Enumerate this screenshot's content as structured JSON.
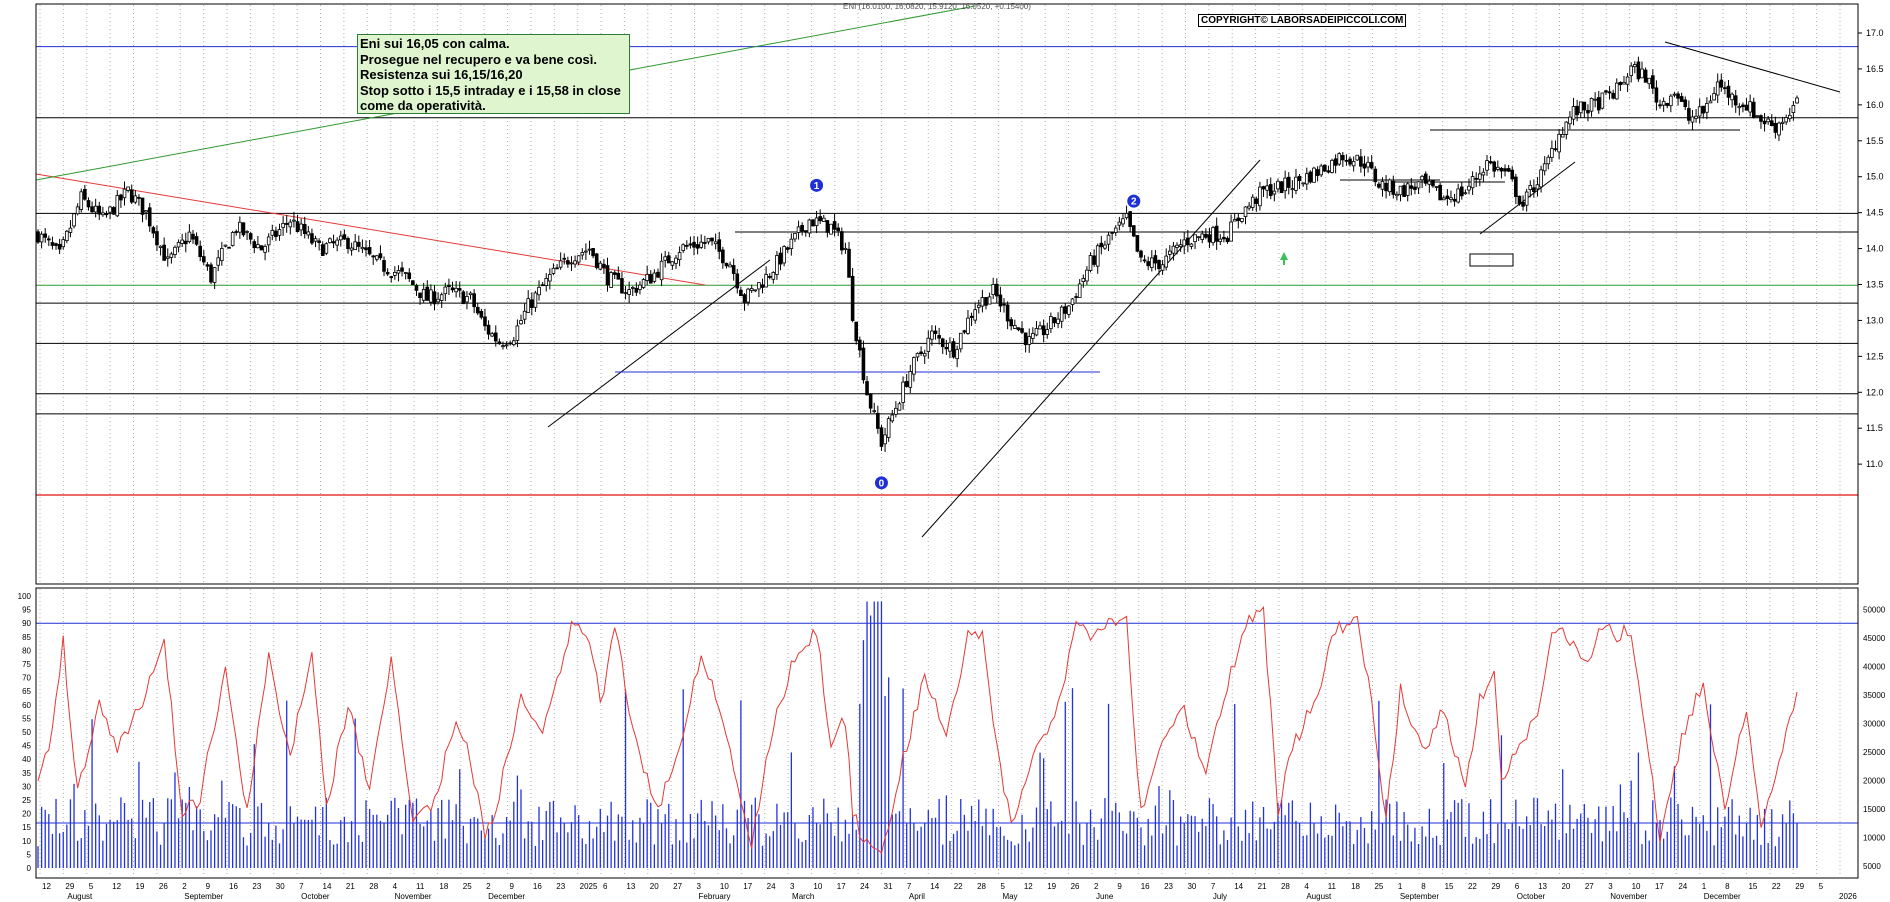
{
  "header_text": "ENI (16.0100, 16.0820, 15.9120, 16.0520, +0.15400)",
  "copyright": "COPYRIGHT© LABORSADEIPICCOLI.COM",
  "annotation_lines": [
    "Eni sui 16,05 con calma.",
    "Prosegue nel recupero e va bene così.",
    "Resistenza sui 16,15/16,20",
    "Stop sotto i 15,5 intraday e i 15,58 in close",
    "come da operatività."
  ],
  "wave_labels": [
    "0",
    "1",
    "2"
  ],
  "colors": {
    "candle": "#000000",
    "trendline_red": "#e53935",
    "trendline_green": "#2e9a2e",
    "level_blue": "#1f2fd6",
    "oscillator": "#e53935",
    "volume": "#2233dd",
    "grid": "#b0b0b0",
    "annotation_bg": "#dff5cf",
    "wave_marker": "#1f2fd6"
  },
  "chart_data": [
    {
      "type": "candlestick",
      "title": "",
      "ylim": [
        10.5,
        17.1
      ],
      "y_ticks": [
        "11.0",
        "11.5",
        "12.0",
        "12.5",
        "13.0",
        "13.5",
        "14.0",
        "14.5",
        "15.0",
        "15.5",
        "16.0",
        "16.5",
        "17.0"
      ],
      "horizontal_levels": [
        {
          "value": 16.81,
          "color": "blue"
        },
        {
          "value": 15.82,
          "color": "black"
        },
        {
          "value": 14.49,
          "color": "black"
        },
        {
          "value": 13.49,
          "color": "green"
        },
        {
          "value": 13.24,
          "color": "black"
        },
        {
          "value": 12.68,
          "color": "black"
        },
        {
          "value": 11.98,
          "color": "black"
        },
        {
          "value": 11.7,
          "color": "black"
        },
        {
          "value": 10.57,
          "color": "red"
        }
      ],
      "price_anchors": [
        [
          0,
          14.2
        ],
        [
          6,
          13.9
        ],
        [
          12,
          14.7
        ],
        [
          18,
          14.4
        ],
        [
          25,
          14.8
        ],
        [
          30,
          14.5
        ],
        [
          36,
          13.8
        ],
        [
          42,
          14.2
        ],
        [
          48,
          13.6
        ],
        [
          55,
          14.3
        ],
        [
          62,
          14.0
        ],
        [
          70,
          14.4
        ],
        [
          78,
          14.0
        ],
        [
          86,
          14.1
        ],
        [
          94,
          13.8
        ],
        [
          102,
          13.6
        ],
        [
          108,
          13.3
        ],
        [
          114,
          13.4
        ],
        [
          120,
          13.3
        ],
        [
          124,
          12.9
        ],
        [
          128,
          12.7
        ],
        [
          132,
          12.8
        ],
        [
          136,
          13.2
        ],
        [
          142,
          13.6
        ],
        [
          148,
          13.9
        ],
        [
          153,
          14.0
        ],
        [
          158,
          13.6
        ],
        [
          164,
          13.4
        ],
        [
          170,
          13.6
        ],
        [
          178,
          14.0
        ],
        [
          186,
          14.1
        ],
        [
          192,
          13.8
        ],
        [
          196,
          13.3
        ],
        [
          202,
          13.6
        ],
        [
          208,
          14.0
        ],
        [
          214,
          14.4
        ],
        [
          220,
          14.3
        ],
        [
          224,
          14.0
        ],
        [
          226,
          13.1
        ],
        [
          230,
          12.0
        ],
        [
          234,
          11.3
        ],
        [
          238,
          11.8
        ],
        [
          242,
          12.3
        ],
        [
          248,
          12.8
        ],
        [
          254,
          12.6
        ],
        [
          260,
          13.2
        ],
        [
          265,
          13.4
        ],
        [
          270,
          13.0
        ],
        [
          275,
          12.7
        ],
        [
          280,
          12.9
        ],
        [
          286,
          13.2
        ],
        [
          292,
          13.8
        ],
        [
          298,
          14.2
        ],
        [
          302,
          14.4
        ],
        [
          306,
          13.8
        ],
        [
          312,
          13.8
        ],
        [
          318,
          14.1
        ],
        [
          324,
          14.2
        ],
        [
          330,
          14.2
        ],
        [
          334,
          14.5
        ],
        [
          340,
          14.8
        ],
        [
          348,
          14.9
        ],
        [
          356,
          15.1
        ],
        [
          362,
          15.3
        ],
        [
          368,
          15.2
        ],
        [
          372,
          14.9
        ],
        [
          378,
          14.8
        ],
        [
          384,
          14.9
        ],
        [
          390,
          14.7
        ],
        [
          396,
          14.8
        ],
        [
          402,
          15.2
        ],
        [
          408,
          15.0
        ],
        [
          412,
          14.6
        ],
        [
          414,
          14.8
        ],
        [
          418,
          15.1
        ],
        [
          422,
          15.6
        ],
        [
          426,
          15.9
        ],
        [
          432,
          16.0
        ],
        [
          438,
          16.2
        ],
        [
          442,
          16.5
        ],
        [
          446,
          16.4
        ],
        [
          450,
          16.0
        ],
        [
          454,
          16.2
        ],
        [
          458,
          15.8
        ],
        [
          462,
          15.9
        ],
        [
          466,
          16.3
        ],
        [
          470,
          16.1
        ],
        [
          474,
          16.0
        ],
        [
          478,
          15.8
        ],
        [
          482,
          15.7
        ],
        [
          486,
          15.9
        ],
        [
          488,
          16.05
        ]
      ],
      "wave_points": [
        {
          "label": "0",
          "i": 234,
          "y": 10.74
        },
        {
          "label": "1",
          "i": 216,
          "y": 14.88
        },
        {
          "label": "2",
          "i": 304,
          "y": 14.66
        }
      ]
    },
    {
      "type": "line",
      "title": "",
      "ylim": [
        0,
        100
      ],
      "y_ticks": [
        0,
        5,
        10,
        15,
        20,
        25,
        30,
        35,
        40,
        45,
        50,
        55,
        60,
        65,
        70,
        75,
        80,
        85,
        90,
        95,
        100
      ],
      "levels": [
        90,
        15
      ],
      "oscillator_anchors": [
        [
          0,
          35
        ],
        [
          3,
          45
        ],
        [
          7,
          83
        ],
        [
          11,
          28
        ],
        [
          17,
          62
        ],
        [
          22,
          45
        ],
        [
          28,
          58
        ],
        [
          35,
          85
        ],
        [
          40,
          20
        ],
        [
          45,
          25
        ],
        [
          52,
          75
        ],
        [
          58,
          20
        ],
        [
          64,
          78
        ],
        [
          70,
          40
        ],
        [
          76,
          82
        ],
        [
          80,
          22
        ],
        [
          86,
          60
        ],
        [
          92,
          28
        ],
        [
          98,
          78
        ],
        [
          104,
          18
        ],
        [
          110,
          25
        ],
        [
          116,
          55
        ],
        [
          120,
          40
        ],
        [
          124,
          10
        ],
        [
          128,
          28
        ],
        [
          134,
          62
        ],
        [
          140,
          50
        ],
        [
          148,
          88
        ],
        [
          153,
          85
        ],
        [
          156,
          60
        ],
        [
          160,
          88
        ],
        [
          166,
          45
        ],
        [
          172,
          22
        ],
        [
          178,
          45
        ],
        [
          184,
          80
        ],
        [
          190,
          55
        ],
        [
          194,
          30
        ],
        [
          198,
          10
        ],
        [
          204,
          52
        ],
        [
          210,
          78
        ],
        [
          216,
          88
        ],
        [
          220,
          45
        ],
        [
          224,
          55
        ],
        [
          226,
          20
        ],
        [
          230,
          8
        ],
        [
          234,
          5
        ],
        [
          240,
          40
        ],
        [
          246,
          70
        ],
        [
          252,
          50
        ],
        [
          258,
          85
        ],
        [
          262,
          88
        ],
        [
          266,
          45
        ],
        [
          270,
          16
        ],
        [
          276,
          42
        ],
        [
          282,
          55
        ],
        [
          288,
          88
        ],
        [
          294,
          85
        ],
        [
          298,
          92
        ],
        [
          302,
          90
        ],
        [
          306,
          20
        ],
        [
          312,
          45
        ],
        [
          318,
          58
        ],
        [
          324,
          35
        ],
        [
          330,
          68
        ],
        [
          336,
          92
        ],
        [
          340,
          95
        ],
        [
          344,
          20
        ],
        [
          348,
          45
        ],
        [
          354,
          60
        ],
        [
          360,
          88
        ],
        [
          366,
          92
        ],
        [
          370,
          60
        ],
        [
          374,
          18
        ],
        [
          378,
          65
        ],
        [
          384,
          42
        ],
        [
          390,
          58
        ],
        [
          396,
          30
        ],
        [
          400,
          62
        ],
        [
          404,
          70
        ],
        [
          406,
          30
        ],
        [
          410,
          45
        ],
        [
          416,
          55
        ],
        [
          420,
          88
        ],
        [
          424,
          85
        ],
        [
          430,
          75
        ],
        [
          434,
          90
        ],
        [
          438,
          85
        ],
        [
          442,
          88
        ],
        [
          446,
          50
        ],
        [
          450,
          12
        ],
        [
          456,
          48
        ],
        [
          462,
          68
        ],
        [
          468,
          22
        ],
        [
          474,
          58
        ],
        [
          478,
          15
        ],
        [
          484,
          42
        ],
        [
          488,
          65
        ]
      ],
      "volume_ticks": [
        "5000",
        "10000",
        "15000",
        "20000",
        "25000",
        "30000",
        "35000",
        "40000",
        "45000",
        "50000"
      ],
      "volume_levels": [
        9500
      ]
    }
  ],
  "x_axis": {
    "day_labels": [
      "12",
      "29",
      "5",
      "12",
      "19",
      "26",
      "2",
      "9",
      "16",
      "23",
      "30",
      "7",
      "14",
      "21",
      "28",
      "4",
      "11",
      "18",
      "25",
      "2",
      "9",
      "16",
      "23",
      "2025",
      "6",
      "13",
      "20",
      "27",
      "3",
      "10",
      "17",
      "24",
      "3",
      "10",
      "17",
      "24",
      "31",
      "7",
      "14",
      "22",
      "28",
      "5",
      "12",
      "19",
      "26",
      "2",
      "9",
      "16",
      "23",
      "30",
      "7",
      "14",
      "21",
      "28",
      "4",
      "11",
      "18",
      "25",
      "1",
      "8",
      "15",
      "22",
      "29",
      "6",
      "13",
      "20",
      "27",
      "3",
      "10",
      "17",
      "24",
      "1",
      "8",
      "15",
      "22",
      "29",
      "5"
    ],
    "months": [
      "August",
      "September",
      "October",
      "November",
      "December",
      "February",
      "March",
      "April",
      "May",
      "June",
      "July",
      "August",
      "September",
      "October",
      "November",
      "December"
    ],
    "year_right": "2026"
  }
}
